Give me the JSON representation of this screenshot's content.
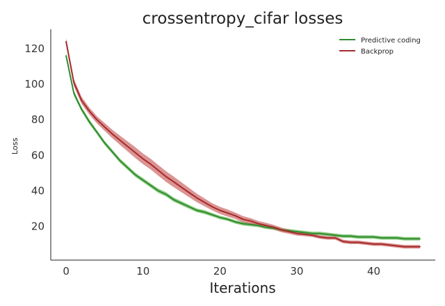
{
  "chart_data": {
    "type": "line",
    "title": "crossentropy_cifar losses",
    "xlabel": "Iterations",
    "ylabel": "Loss",
    "xlim": [
      -2,
      48
    ],
    "ylim": [
      1,
      131
    ],
    "xticks": [
      0,
      10,
      20,
      30,
      40
    ],
    "yticks": [
      20,
      40,
      60,
      80,
      100,
      120
    ],
    "grid": false,
    "legend_position": "top-right",
    "x": [
      0,
      1,
      2,
      3,
      4,
      5,
      6,
      7,
      8,
      9,
      10,
      11,
      12,
      13,
      14,
      15,
      16,
      17,
      18,
      19,
      20,
      21,
      22,
      23,
      24,
      25,
      26,
      27,
      28,
      29,
      30,
      31,
      32,
      33,
      34,
      35,
      36,
      37,
      38,
      39,
      40,
      41,
      42,
      43,
      44,
      45,
      46
    ],
    "series": [
      {
        "name": "Predictive coding",
        "color": "#2e8b2e",
        "band_color": "#66bb55",
        "values": [
          116,
          95,
          86,
          79,
          73,
          67,
          62,
          57,
          53,
          49,
          46,
          43,
          40,
          38,
          35,
          33,
          31,
          29,
          28,
          26.5,
          25,
          24,
          22.5,
          21.5,
          21,
          20.5,
          19.5,
          19,
          18,
          17.5,
          17,
          16.5,
          16,
          16,
          15.5,
          15,
          14.5,
          14.5,
          14,
          14,
          14,
          13.5,
          13.5,
          13.5,
          13,
          13,
          13
        ],
        "spread": [
          1.5,
          1.5,
          1.3,
          1.3,
          1.2,
          1.2,
          1.2,
          1.2,
          1.2,
          1.2,
          1.2,
          1.2,
          1.2,
          1.2,
          1.2,
          1.2,
          1.1,
          1.1,
          1.1,
          1,
          1,
          1,
          1,
          1,
          1,
          1,
          1,
          1,
          1,
          1,
          1,
          1,
          1,
          1,
          1,
          1,
          1,
          1,
          1,
          1,
          1,
          1,
          1,
          1,
          1,
          1,
          1
        ]
      },
      {
        "name": "Backprop",
        "color": "#a52a2a",
        "band_color": "#cc6666",
        "values": [
          124,
          101,
          91,
          85,
          80,
          76,
          72,
          68.5,
          65,
          61.5,
          58,
          55,
          51.5,
          48,
          45,
          42,
          39,
          36,
          33.5,
          31,
          29,
          27.5,
          26,
          24,
          23,
          21.5,
          20.5,
          19.5,
          18,
          17,
          16,
          15.5,
          15,
          14,
          13.5,
          13.5,
          11.5,
          11,
          11,
          10.5,
          10,
          10,
          9.5,
          9,
          8.5,
          8.5,
          8.5
        ],
        "spread": [
          2,
          2,
          2,
          2,
          2,
          2.2,
          2.4,
          2.6,
          2.8,
          3,
          3,
          3,
          3,
          3,
          3,
          2.8,
          2.6,
          2.4,
          2.2,
          2,
          2,
          2,
          1.8,
          1.8,
          1.6,
          1.5,
          1.5,
          1.3,
          1.3,
          1.2,
          1.2,
          1,
          1,
          1,
          1,
          1,
          1,
          1,
          1,
          1,
          1,
          1,
          1,
          1,
          1,
          1,
          1
        ]
      }
    ]
  }
}
